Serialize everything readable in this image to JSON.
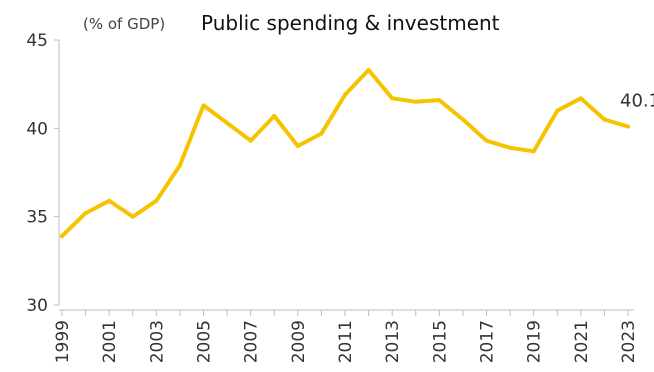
{
  "chart_data": {
    "type": "line",
    "title": "Public spending & investment",
    "subtitle": "(% of GDP)",
    "x": [
      1999,
      2000,
      2001,
      2002,
      2003,
      2004,
      2005,
      2006,
      2007,
      2008,
      2009,
      2010,
      2011,
      2012,
      2013,
      2014,
      2015,
      2016,
      2017,
      2018,
      2019,
      2020,
      2021,
      2022,
      2023
    ],
    "series": [
      {
        "values": [
          33.9,
          35.2,
          35.9,
          35.0,
          35.9,
          37.9,
          41.3,
          40.3,
          39.3,
          40.7,
          39.0,
          39.7,
          41.9,
          43.3,
          41.7,
          41.5,
          41.6,
          40.5,
          39.3,
          38.9,
          38.7,
          41.0,
          41.7,
          40.5,
          40.1
        ]
      }
    ],
    "end_label": "40.1",
    "ylim": [
      30,
      45
    ],
    "yticks": [
      30,
      35,
      40,
      45
    ],
    "xticks": [
      1999,
      2001,
      2003,
      2005,
      2007,
      2009,
      2011,
      2013,
      2015,
      2017,
      2019,
      2021,
      2023
    ],
    "grid": false,
    "line_color": "#F5C400",
    "axis_color": "#BDBDBD"
  }
}
